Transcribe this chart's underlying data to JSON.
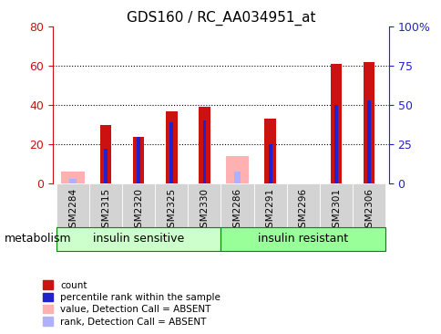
{
  "title": "GDS160 / RC_AA034951_at",
  "samples": [
    "GSM2284",
    "GSM2315",
    "GSM2320",
    "GSM2325",
    "GSM2330",
    "GSM2286",
    "GSM2291",
    "GSM2296",
    "GSM2301",
    "GSM2306"
  ],
  "count_values": [
    0,
    30,
    24,
    37,
    39,
    0,
    33,
    0,
    61,
    62
  ],
  "rank_values": [
    0,
    22,
    30,
    39,
    40,
    0,
    25,
    0,
    50,
    53
  ],
  "absent_count": [
    6,
    0,
    0,
    0,
    0,
    14,
    0,
    0,
    0,
    0
  ],
  "absent_rank": [
    3,
    0,
    0,
    0,
    0,
    8,
    0,
    0,
    0,
    0
  ],
  "bar_width": 0.35,
  "red_color": "#CC1111",
  "blue_color": "#2222CC",
  "pink_color": "#FFB0B0",
  "light_blue_color": "#B0B0FF",
  "ylim_left": [
    0,
    80
  ],
  "ylim_right": [
    0,
    100
  ],
  "yticks_left": [
    0,
    20,
    40,
    60,
    80
  ],
  "ytick_labels_left": [
    "0",
    "20",
    "40",
    "60",
    "80"
  ],
  "yticks_right": [
    0,
    25,
    50,
    75,
    100
  ],
  "ytick_labels_right": [
    "0",
    "25",
    "50",
    "75",
    "100%"
  ],
  "group1_label": "insulin sensitive",
  "group2_label": "insulin resistant",
  "group1_indices": [
    0,
    1,
    2,
    3,
    4
  ],
  "group2_indices": [
    5,
    6,
    7,
    8,
    9
  ],
  "metabolism_label": "metabolism",
  "legend_items": [
    {
      "label": "count",
      "color": "#CC1111"
    },
    {
      "label": "percentile rank within the sample",
      "color": "#2222CC"
    },
    {
      "label": "value, Detection Call = ABSENT",
      "color": "#FFB0B0"
    },
    {
      "label": "rank, Detection Call = ABSENT",
      "color": "#B0B0FF"
    }
  ],
  "background_color": "#ffffff",
  "plot_bg_color": "#ffffff",
  "tick_label_color_left": "#CC1111",
  "tick_label_color_right": "#2222CC",
  "grid_color": "#000000",
  "xlabel_area_color": "#cccccc",
  "group_box_color1": "#ccffcc",
  "group_box_color2": "#99ff99"
}
